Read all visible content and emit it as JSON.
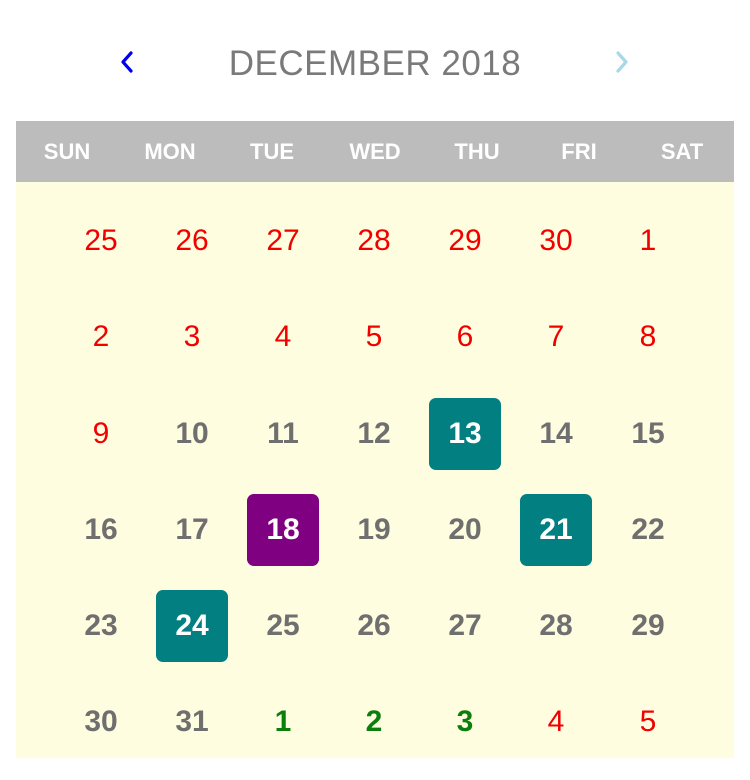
{
  "header": {
    "month_title": "DECEMBER 2018",
    "prev_icon": "chevron-left-icon",
    "next_icon": "chevron-right-icon",
    "prev_color": "#0000ee",
    "next_color": "#a9d8e8"
  },
  "weekdays": [
    "SUN",
    "MON",
    "TUE",
    "WED",
    "THU",
    "FRI",
    "SAT"
  ],
  "colors": {
    "weekday_bar": "#bcbcbc",
    "grid_background": "#fffde0",
    "red_text": "#f20000",
    "gray_text": "#6f6f6f",
    "green_text": "#0b7f0b",
    "teal_highlight": "#027f80",
    "purple_highlight": "#7f0080"
  },
  "weeks": [
    [
      {
        "day": "25",
        "style": "red"
      },
      {
        "day": "26",
        "style": "red"
      },
      {
        "day": "27",
        "style": "red"
      },
      {
        "day": "28",
        "style": "red"
      },
      {
        "day": "29",
        "style": "red"
      },
      {
        "day": "30",
        "style": "red"
      },
      {
        "day": "1",
        "style": "red"
      }
    ],
    [
      {
        "day": "2",
        "style": "red"
      },
      {
        "day": "3",
        "style": "red"
      },
      {
        "day": "4",
        "style": "red"
      },
      {
        "day": "5",
        "style": "red"
      },
      {
        "day": "6",
        "style": "red"
      },
      {
        "day": "7",
        "style": "red"
      },
      {
        "day": "8",
        "style": "red"
      }
    ],
    [
      {
        "day": "9",
        "style": "red"
      },
      {
        "day": "10",
        "style": "gray"
      },
      {
        "day": "11",
        "style": "gray"
      },
      {
        "day": "12",
        "style": "gray"
      },
      {
        "day": "13",
        "style": "teal"
      },
      {
        "day": "14",
        "style": "gray"
      },
      {
        "day": "15",
        "style": "gray"
      }
    ],
    [
      {
        "day": "16",
        "style": "gray"
      },
      {
        "day": "17",
        "style": "gray"
      },
      {
        "day": "18",
        "style": "purple"
      },
      {
        "day": "19",
        "style": "gray"
      },
      {
        "day": "20",
        "style": "gray"
      },
      {
        "day": "21",
        "style": "teal"
      },
      {
        "day": "22",
        "style": "gray"
      }
    ],
    [
      {
        "day": "23",
        "style": "gray"
      },
      {
        "day": "24",
        "style": "teal"
      },
      {
        "day": "25",
        "style": "gray"
      },
      {
        "day": "26",
        "style": "gray"
      },
      {
        "day": "27",
        "style": "gray"
      },
      {
        "day": "28",
        "style": "gray"
      },
      {
        "day": "29",
        "style": "gray"
      }
    ],
    [
      {
        "day": "30",
        "style": "gray"
      },
      {
        "day": "31",
        "style": "gray"
      },
      {
        "day": "1",
        "style": "green"
      },
      {
        "day": "2",
        "style": "green"
      },
      {
        "day": "3",
        "style": "green"
      },
      {
        "day": "4",
        "style": "red"
      },
      {
        "day": "5",
        "style": "red"
      }
    ]
  ]
}
